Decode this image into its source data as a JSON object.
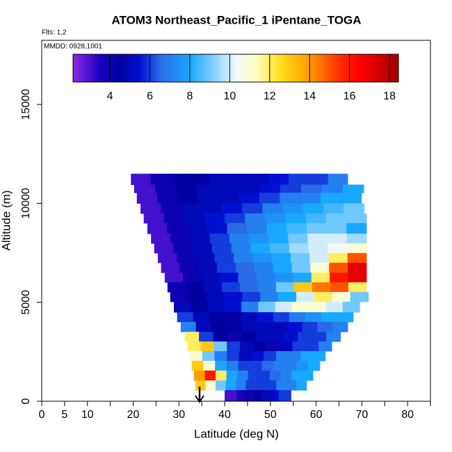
{
  "chart_data": {
    "type": "curtain",
    "title": "ATOM3 Northeast_Pacific_1 iPentane_TOGA",
    "flights_label": "Flts: 1,2",
    "dates_label": "MMDD: 0928,1001",
    "x_label": "Latitude (deg N)",
    "y_label": "Altitude (m)",
    "xlim": [
      0,
      85
    ],
    "xticks": [
      0,
      5,
      10,
      20,
      30,
      40,
      50,
      60,
      70,
      80
    ],
    "xminorticks": [
      15,
      25,
      35,
      45,
      55,
      65,
      75,
      85
    ],
    "ylim": [
      0,
      18240
    ],
    "yticks": [
      0,
      5000,
      10000,
      15000
    ],
    "clim": [
      2.15,
      18.45
    ],
    "cticks": [
      4,
      6,
      8,
      10,
      12,
      14,
      16,
      18
    ],
    "colormap": [
      [
        2.15,
        "#8a2be2"
      ],
      [
        3.5,
        "#1a00c0"
      ],
      [
        4.5,
        "#0000a0"
      ],
      [
        5.5,
        "#0010d0"
      ],
      [
        6.5,
        "#2a6ae8"
      ],
      [
        8,
        "#18a8ff"
      ],
      [
        9,
        "#70c8ff"
      ],
      [
        10.3,
        "#f0f8ff"
      ],
      [
        11.3,
        "#ffffc0"
      ],
      [
        12.5,
        "#ffe020"
      ],
      [
        14,
        "#ff9a00"
      ],
      [
        15.5,
        "#ff3000"
      ],
      [
        16.5,
        "#ff0000"
      ],
      [
        18.45,
        "#a00000"
      ]
    ],
    "rows": [
      {
        "alt": [
          10950,
          11500
        ],
        "lat": [
          19.5,
          66.9
        ],
        "values": [
          3,
          4,
          4.5,
          4.5,
          5,
          5,
          5,
          5.5,
          6,
          6,
          7
        ]
      },
      {
        "alt": [
          10540,
          10950
        ],
        "lat": [
          20.2,
          70.4
        ],
        "values": [
          3,
          4,
          4.5,
          5,
          5,
          5,
          5.5,
          6,
          6.5,
          7,
          8
        ]
      },
      {
        "alt": [
          10000,
          10540
        ],
        "lat": [
          20.8,
          69.9
        ],
        "values": [
          3,
          4,
          4.5,
          5,
          5,
          5.5,
          6,
          7,
          7,
          8,
          8
        ]
      },
      {
        "alt": [
          9490,
          10000
        ],
        "lat": [
          21.6,
          70.5
        ],
        "values": [
          3,
          4,
          5,
          5,
          5.5,
          6,
          7,
          7.5,
          8,
          8.5,
          9
        ]
      },
      {
        "alt": [
          9000,
          9490
        ],
        "lat": [
          22.3,
          71
        ],
        "values": [
          3,
          4,
          5,
          5.5,
          6,
          7,
          7.5,
          8,
          8.5,
          9,
          9
        ]
      },
      {
        "alt": [
          8470,
          9000
        ],
        "lat": [
          23.1,
          71
        ],
        "values": [
          3,
          4,
          5,
          5.5,
          6.5,
          7,
          8,
          8.5,
          9,
          9,
          8
        ]
      },
      {
        "alt": [
          7980,
          8470
        ],
        "lat": [
          23.9,
          71
        ],
        "values": [
          3,
          4,
          5,
          6,
          7,
          7.5,
          8,
          9,
          10,
          10,
          9.5
        ]
      },
      {
        "alt": [
          7490,
          7980
        ],
        "lat": [
          24.6,
          71
        ],
        "values": [
          3,
          4,
          5,
          6,
          7,
          8,
          8.5,
          9.5,
          10,
          10.5,
          11
        ]
      },
      {
        "alt": [
          7000,
          7490
        ],
        "lat": [
          25.4,
          71
        ],
        "values": [
          3,
          4,
          5,
          6,
          7,
          7.5,
          8,
          9,
          10,
          12,
          15
        ]
      },
      {
        "alt": [
          6500,
          7000
        ],
        "lat": [
          26.1,
          71
        ],
        "values": [
          3,
          4,
          5,
          6,
          6.5,
          7,
          8,
          9,
          11,
          15,
          17
        ]
      },
      {
        "alt": [
          6010,
          6500
        ],
        "lat": [
          26.9,
          71
        ],
        "values": [
          3,
          4,
          5,
          5.5,
          6.5,
          7,
          7.5,
          8,
          12,
          16,
          17
        ]
      },
      {
        "alt": [
          5520,
          6010
        ],
        "lat": [
          27.5,
          71
        ],
        "values": [
          4,
          4.5,
          5,
          6,
          6.5,
          7,
          9,
          13,
          14.5,
          15,
          12
        ]
      },
      {
        "alt": [
          5030,
          5520
        ],
        "lat": [
          28.1,
          71.4
        ],
        "values": [
          4,
          4.5,
          5,
          5.5,
          6,
          7,
          8,
          10,
          12,
          11,
          9
        ]
      },
      {
        "alt": [
          4500,
          5030
        ],
        "lat": [
          28.9,
          69.5
        ],
        "values": [
          5,
          4.5,
          5,
          5.5,
          7,
          9,
          10,
          11,
          11,
          10,
          9
        ]
      },
      {
        "alt": [
          4010,
          4500
        ],
        "lat": [
          29.6,
          68.1
        ],
        "values": [
          6,
          5,
          4.5,
          4.5,
          5,
          5.5,
          6,
          7,
          7.5,
          8,
          8
        ]
      },
      {
        "alt": [
          3510,
          4010
        ],
        "lat": [
          30.4,
          66.9
        ],
        "values": [
          7,
          5,
          4.5,
          4.5,
          5,
          5,
          5,
          5.5,
          6,
          6.5,
          7
        ]
      },
      {
        "alt": [
          3020,
          3510
        ],
        "lat": [
          31.3,
          65.3
        ],
        "values": [
          12,
          6,
          4.5,
          4,
          4.5,
          5,
          5,
          5.5,
          6,
          6,
          7
        ]
      },
      {
        "alt": [
          2530,
          3020
        ],
        "lat": [
          31.9,
          63.4
        ],
        "values": [
          12,
          13,
          9,
          6,
          5,
          4.5,
          4,
          5,
          6,
          6,
          7
        ]
      },
      {
        "alt": [
          2040,
          2530
        ],
        "lat": [
          32.4,
          62
        ],
        "values": [
          11,
          9,
          7,
          6,
          5,
          5.5,
          6,
          7,
          7,
          8,
          8
        ]
      },
      {
        "alt": [
          1550,
          2040
        ],
        "lat": [
          32.8,
          60.8
        ],
        "values": [
          13,
          11,
          8,
          7,
          6,
          6,
          6.5,
          7,
          7,
          7.5,
          8
        ]
      },
      {
        "alt": [
          1050,
          1550
        ],
        "lat": [
          33.3,
          59.3
        ],
        "values": [
          14,
          16,
          12,
          8,
          7,
          6,
          6,
          6.5,
          7,
          8,
          8
        ]
      },
      {
        "alt": [
          560,
          1050
        ],
        "lat": [
          33.6,
          57.9
        ],
        "values": [
          13,
          11,
          9,
          8,
          7,
          6,
          6,
          6,
          7,
          7,
          8
        ]
      },
      {
        "alt": [
          0,
          560
        ],
        "lat": [
          40,
          54.5
        ],
        "values": [
          3,
          3,
          3.5,
          4,
          4,
          4.5,
          5,
          5,
          5.5,
          6,
          6
        ]
      }
    ]
  }
}
